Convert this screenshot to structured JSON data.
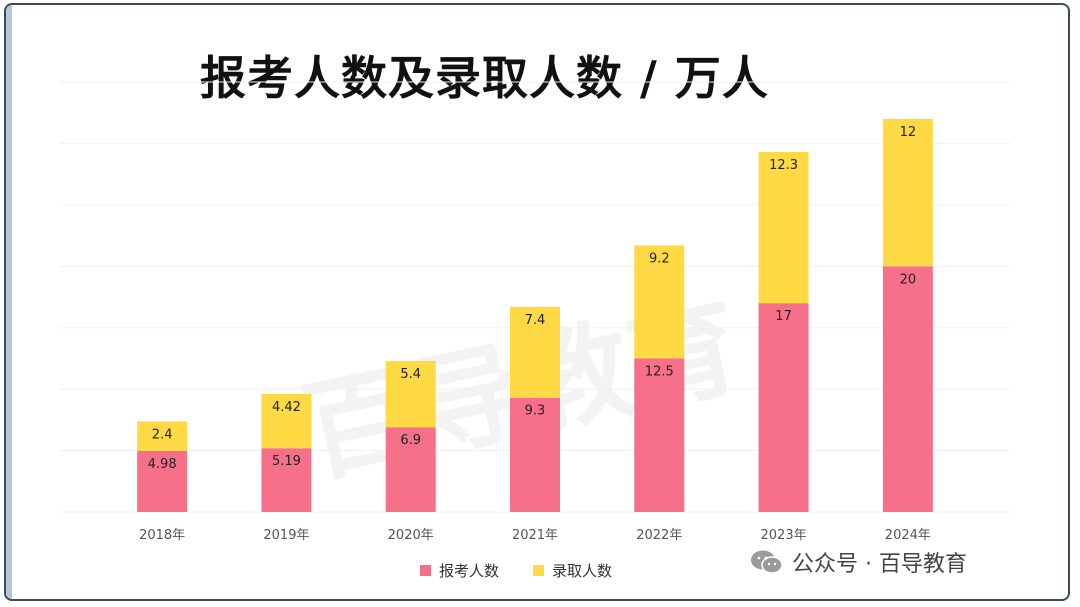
{
  "chart_data": {
    "type": "bar",
    "stacked": true,
    "title": "报考人数及录取人数 / 万人",
    "categories": [
      "2018年",
      "2019年",
      "2020年",
      "2021年",
      "2022年",
      "2023年",
      "2024年"
    ],
    "series": [
      {
        "name": "报考人数",
        "color": "#F7708A",
        "values": [
          4.98,
          5.19,
          6.9,
          9.3,
          12.5,
          17,
          20
        ]
      },
      {
        "name": "录取人数",
        "color": "#FFDA45",
        "values": [
          2.4,
          4.42,
          5.4,
          7.4,
          9.2,
          12.3,
          12
        ]
      }
    ],
    "labels": [
      [
        "4.98",
        "5.19",
        "6.9",
        "9.3",
        "12.5",
        "17",
        "20"
      ],
      [
        "2.4",
        "4.42",
        "5.4",
        "7.4",
        "9.2",
        "12.3",
        "12"
      ]
    ],
    "ylim": [
      0,
      35
    ],
    "grid": true,
    "legend_position": "bottom-center"
  },
  "watermark": "百导教育",
  "source_label": "公众号 · 百导教育",
  "source_icon": "wechat-icon"
}
